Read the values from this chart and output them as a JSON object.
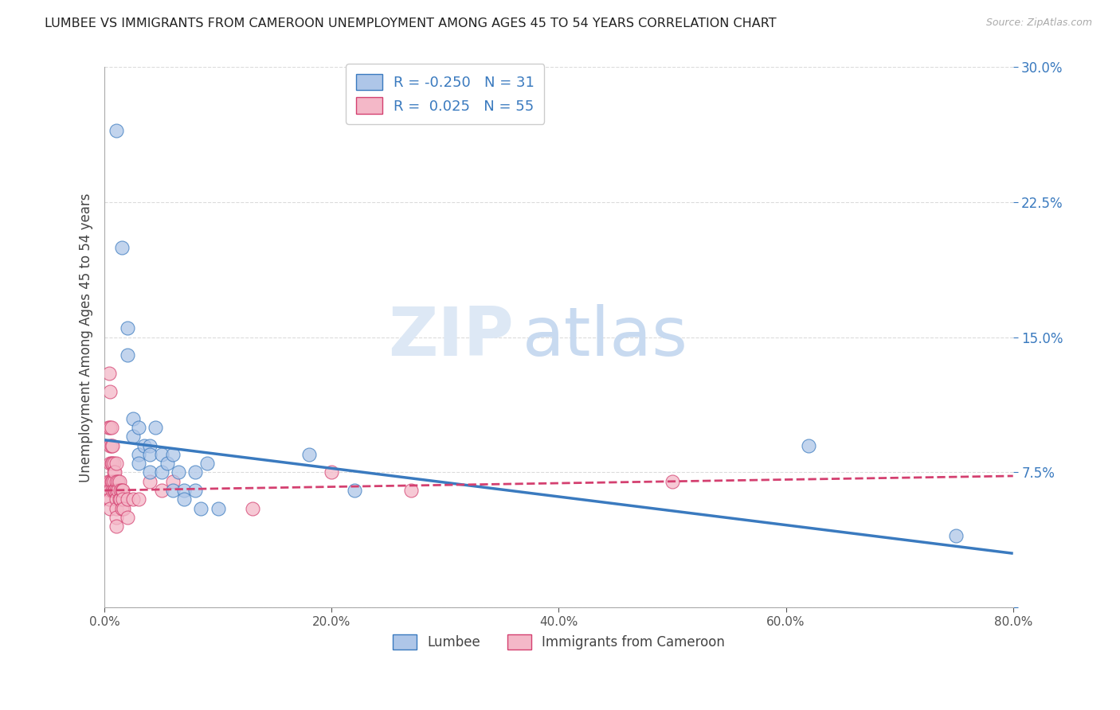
{
  "title": "LUMBEE VS IMMIGRANTS FROM CAMEROON UNEMPLOYMENT AMONG AGES 45 TO 54 YEARS CORRELATION CHART",
  "source": "Source: ZipAtlas.com",
  "xlabel": "",
  "ylabel": "Unemployment Among Ages 45 to 54 years",
  "xlim": [
    0.0,
    0.8
  ],
  "ylim": [
    0.0,
    0.3
  ],
  "xticks": [
    0.0,
    0.2,
    0.4,
    0.6,
    0.8
  ],
  "xticklabels": [
    "0.0%",
    "20.0%",
    "40.0%",
    "60.0%",
    "80.0%"
  ],
  "yticks": [
    0.0,
    0.075,
    0.15,
    0.225,
    0.3
  ],
  "yticklabels": [
    "",
    "7.5%",
    "15.0%",
    "22.5%",
    "30.0%"
  ],
  "legend_labels": [
    "Lumbee",
    "Immigrants from Cameroon"
  ],
  "lumbee_R": -0.25,
  "lumbee_N": 31,
  "cameroon_R": 0.025,
  "cameroon_N": 55,
  "lumbee_color": "#aec6e8",
  "cameroon_color": "#f4b8c8",
  "lumbee_line_color": "#3a7abf",
  "cameroon_line_color": "#d44070",
  "watermark_zip": "ZIP",
  "watermark_atlas": "atlas",
  "background_color": "#ffffff",
  "grid_color": "#cccccc",
  "lumbee_x": [
    0.01,
    0.015,
    0.02,
    0.02,
    0.025,
    0.025,
    0.03,
    0.03,
    0.03,
    0.035,
    0.04,
    0.04,
    0.04,
    0.045,
    0.05,
    0.05,
    0.055,
    0.06,
    0.06,
    0.065,
    0.07,
    0.07,
    0.08,
    0.08,
    0.085,
    0.09,
    0.1,
    0.18,
    0.22,
    0.62,
    0.75
  ],
  "lumbee_y": [
    0.265,
    0.2,
    0.155,
    0.14,
    0.105,
    0.095,
    0.1,
    0.085,
    0.08,
    0.09,
    0.09,
    0.085,
    0.075,
    0.1,
    0.085,
    0.075,
    0.08,
    0.085,
    0.065,
    0.075,
    0.065,
    0.06,
    0.075,
    0.065,
    0.055,
    0.08,
    0.055,
    0.085,
    0.065,
    0.09,
    0.04
  ],
  "cameroon_x": [
    0.003,
    0.003,
    0.004,
    0.004,
    0.005,
    0.005,
    0.005,
    0.005,
    0.005,
    0.005,
    0.005,
    0.005,
    0.006,
    0.006,
    0.006,
    0.006,
    0.007,
    0.007,
    0.007,
    0.007,
    0.008,
    0.008,
    0.008,
    0.008,
    0.009,
    0.009,
    0.01,
    0.01,
    0.01,
    0.01,
    0.01,
    0.01,
    0.01,
    0.012,
    0.012,
    0.013,
    0.013,
    0.014,
    0.014,
    0.015,
    0.015,
    0.016,
    0.016,
    0.017,
    0.02,
    0.02,
    0.025,
    0.03,
    0.04,
    0.05,
    0.06,
    0.13,
    0.2,
    0.27,
    0.5
  ],
  "cameroon_y": [
    0.1,
    0.07,
    0.13,
    0.06,
    0.12,
    0.1,
    0.09,
    0.08,
    0.07,
    0.065,
    0.06,
    0.055,
    0.1,
    0.09,
    0.08,
    0.07,
    0.09,
    0.08,
    0.07,
    0.065,
    0.08,
    0.075,
    0.07,
    0.065,
    0.075,
    0.065,
    0.08,
    0.07,
    0.065,
    0.06,
    0.055,
    0.05,
    0.045,
    0.07,
    0.065,
    0.07,
    0.06,
    0.065,
    0.06,
    0.065,
    0.055,
    0.065,
    0.06,
    0.055,
    0.06,
    0.05,
    0.06,
    0.06,
    0.07,
    0.065,
    0.07,
    0.055,
    0.075,
    0.065,
    0.07
  ],
  "lumbee_trendline_x": [
    0.0,
    0.8
  ],
  "lumbee_trendline_y": [
    0.093,
    0.03
  ],
  "cameroon_trendline_x": [
    0.0,
    0.8
  ],
  "cameroon_trendline_y": [
    0.065,
    0.073
  ]
}
